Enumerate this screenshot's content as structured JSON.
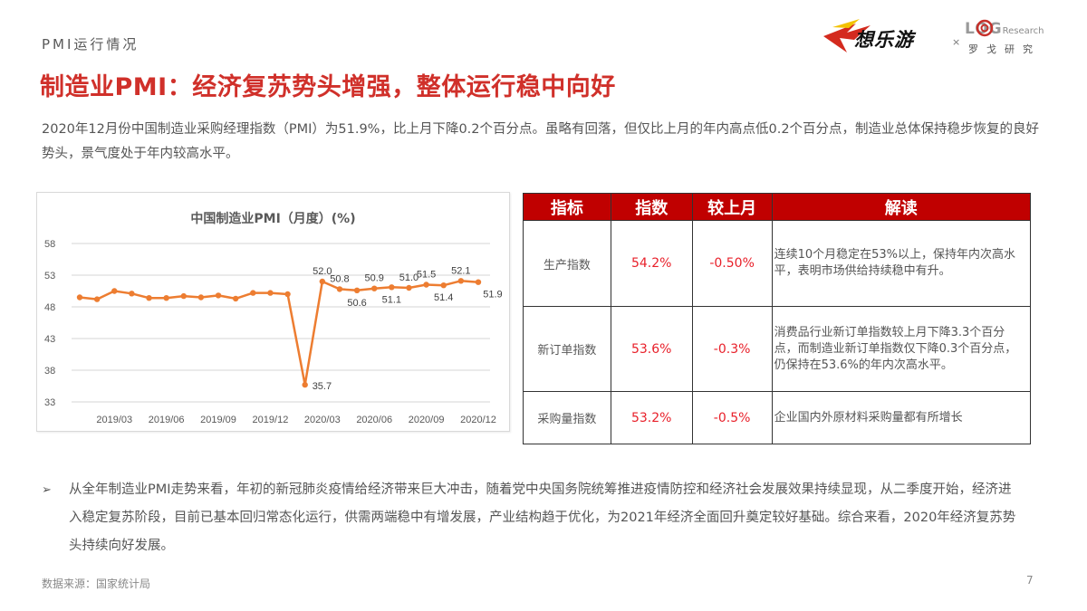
{
  "header": {
    "section_label": "PMI运行情况",
    "title": "制造业PMI：经济复苏势头增强，整体运行稳中向好",
    "logo_left_text": "想乐游",
    "logo_separator": "×",
    "logo_right_word": "LOG",
    "logo_right_small": "Research",
    "logo_right_sub": "罗戈研究"
  },
  "intro": "2020年12月份中国制造业采购经理指数（PMI）为51.9%，比上月下降0.2个百分点。虽略有回落，但仅比上月的年内高点低0.2个百分点，制造业总体保持稳步恢复的良好势头，景气度处于年内较高水平。",
  "chart_data": {
    "type": "line",
    "title": "中国制造业PMI（月度）(%)",
    "xlabel": "",
    "ylabel": "",
    "ylim": [
      33,
      58
    ],
    "yticks": [
      58,
      53,
      48,
      43,
      38,
      33
    ],
    "grid": true,
    "legend": "none",
    "color": "#ed7d31",
    "x": [
      "2019/01",
      "2019/02",
      "2019/03",
      "2019/04",
      "2019/05",
      "2019/06",
      "2019/07",
      "2019/08",
      "2019/09",
      "2019/10",
      "2019/11",
      "2019/12",
      "2020/01",
      "2020/02",
      "2020/03",
      "2020/04",
      "2020/05",
      "2020/06",
      "2020/07",
      "2020/08",
      "2020/09",
      "2020/10",
      "2020/11",
      "2020/12"
    ],
    "xtick_labels": [
      "2019/03",
      "2019/06",
      "2019/09",
      "2019/12",
      "2020/03",
      "2020/06",
      "2020/09",
      "2020/12"
    ],
    "series": [
      {
        "name": "PMI",
        "values": [
          49.5,
          49.2,
          50.5,
          50.1,
          49.4,
          49.4,
          49.7,
          49.5,
          49.8,
          49.3,
          50.2,
          50.2,
          50.0,
          35.7,
          52.0,
          50.8,
          50.6,
          50.9,
          51.1,
          51.0,
          51.5,
          51.4,
          52.1,
          51.9
        ]
      }
    ],
    "annotations": [
      {
        "index": 13,
        "text": "35.7",
        "pos": "right"
      },
      {
        "index": 14,
        "text": "52.0",
        "pos": "above"
      },
      {
        "index": 15,
        "text": "50.8",
        "pos": "above"
      },
      {
        "index": 16,
        "text": "50.6",
        "pos": "below"
      },
      {
        "index": 17,
        "text": "50.9",
        "pos": "above"
      },
      {
        "index": 18,
        "text": "51.1",
        "pos": "below"
      },
      {
        "index": 19,
        "text": "51.0",
        "pos": "above"
      },
      {
        "index": 20,
        "text": "51.5",
        "pos": "above"
      },
      {
        "index": 21,
        "text": "51.4",
        "pos": "below"
      },
      {
        "index": 22,
        "text": "52.1",
        "pos": "above"
      },
      {
        "index": 23,
        "text": "51.9",
        "pos": "below"
      }
    ]
  },
  "table": {
    "headers": [
      "指标",
      "指数",
      "较上月",
      "解读"
    ],
    "rows": [
      {
        "name": "生产指数",
        "value": "54.2%",
        "change": "-0.50%",
        "desc": "连续10个月稳定在53%以上，保持年内次高水平，表明市场供给持续稳中有升。"
      },
      {
        "name": "新订单指数",
        "value": "53.6%",
        "change": "-0.3%",
        "desc": "消费品行业新订单指数较上月下降3.3个百分点，而制造业新订单指数仅下降0.3个百分点，仍保持在53.6%的年内次高水平。"
      },
      {
        "name": "采购量指数",
        "value": "53.2%",
        "change": "-0.5%",
        "desc": "企业国内外原材料采购量都有所增长"
      }
    ]
  },
  "bullet": {
    "marker": "➢",
    "text": "从全年制造业PMI走势来看，年初的新冠肺炎疫情给经济带来巨大冲击，随着党中央国务院统筹推进疫情防控和经济社会发展效果持续显现，从二季度开始，经济进入稳定复苏阶段，目前已基本回归常态化运行，供需两端稳中有增发展，产业结构趋于优化，为2021年经济全面回升奠定较好基础。综合来看，2020年经济复苏势头持续向好发展。"
  },
  "footer": {
    "source": "数据来源：国家统计局",
    "page_number": "7"
  }
}
